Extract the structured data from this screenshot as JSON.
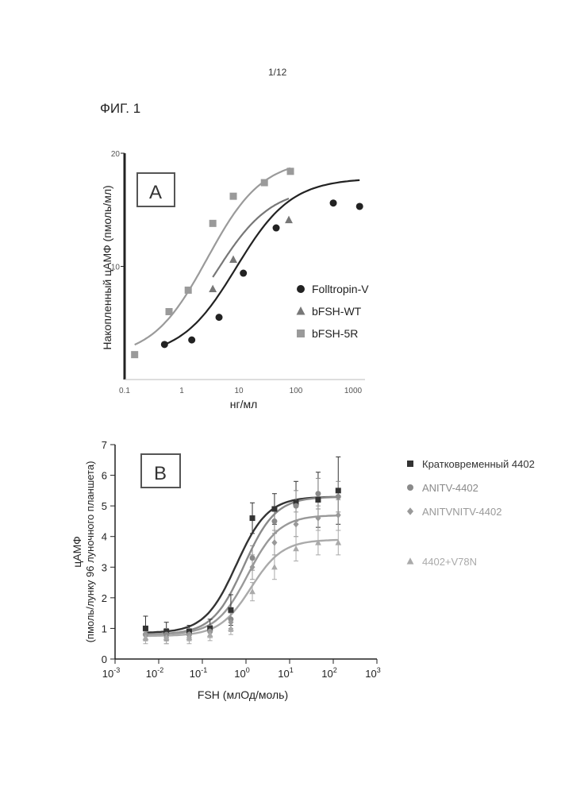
{
  "page": {
    "number": "1/12",
    "figure_label": "ФИГ. 1"
  },
  "colors": {
    "ink": "#222222",
    "gray_dark": "#444444",
    "gray_mid": "#777777",
    "gray_light": "#9a9a9a",
    "panel_border": "#555555"
  },
  "chart_data": [
    {
      "panel": "A",
      "type": "scatter",
      "xscale": "log",
      "xlabel": "нг/мл",
      "ylabel": "Накопленный цАМФ (пмоль/мл)",
      "xlim": [
        0.1,
        1000
      ],
      "ylim": [
        0,
        20
      ],
      "x_ticks": [
        "0.1",
        "1",
        "10",
        "100",
        "1000"
      ],
      "y_ticks": [
        "10",
        "20"
      ],
      "grid": false,
      "legend_position": "right",
      "series": [
        {
          "name": "Folltropin-V",
          "marker": "circle",
          "color": "#222222",
          "x": [
            0.5,
            1.5,
            4.5,
            12,
            45,
            450,
            1300
          ],
          "y": [
            3.1,
            3.5,
            5.5,
            9.4,
            13.4,
            15.6,
            15.3
          ],
          "fit": {
            "top": 17.8,
            "bottom": 2.0,
            "ec50": 9,
            "hill": 0.9
          }
        },
        {
          "name": "bFSH-WT",
          "marker": "triangle",
          "color": "#777777",
          "x": [
            3.5,
            8,
            75
          ],
          "y": [
            8.0,
            10.6,
            14.1
          ],
          "fit": {
            "top": 17.0,
            "bottom": 2.0,
            "ec50": 4,
            "hill": 0.9
          }
        },
        {
          "name": "bFSH-5R",
          "marker": "square",
          "color": "#9a9a9a",
          "x": [
            0.15,
            0.6,
            1.3,
            3.5,
            8,
            28,
            80
          ],
          "y": [
            2.2,
            6.0,
            7.9,
            13.8,
            16.2,
            17.4,
            18.4
          ],
          "fit": {
            "top": 19.5,
            "bottom": 1.9,
            "ec50": 2.8,
            "hill": 0.9
          }
        }
      ]
    },
    {
      "panel": "B",
      "type": "scatter",
      "xscale": "log",
      "xlabel": "FSH (млОд/моль)",
      "ylabel_line1": "цАМФ",
      "ylabel_line2": "(пмоль/лунку 96 луночного планшета)",
      "xlim": [
        0.001,
        1000
      ],
      "ylim": [
        0,
        7
      ],
      "x_ticks": [
        {
          "base": "10",
          "exp": "-3"
        },
        {
          "base": "10",
          "exp": "-2"
        },
        {
          "base": "10",
          "exp": "-1"
        },
        {
          "base": "10",
          "exp": "0"
        },
        {
          "base": "10",
          "exp": "1"
        },
        {
          "base": "10",
          "exp": "2"
        },
        {
          "base": "10",
          "exp": "3"
        }
      ],
      "y_ticks": [
        "0",
        "1",
        "2",
        "3",
        "4",
        "5",
        "6",
        "7"
      ],
      "grid": false,
      "legend_position": "right",
      "series": [
        {
          "name": "Кратковременный 4402",
          "marker": "square",
          "color": "#333333",
          "x": [
            0.005,
            0.015,
            0.05,
            0.15,
            0.45,
            1.4,
            4.5,
            14,
            45,
            130
          ],
          "y": [
            1.0,
            0.9,
            0.9,
            1.0,
            1.6,
            4.6,
            4.9,
            5.1,
            5.2,
            5.5
          ],
          "err": [
            0.4,
            0.3,
            0.2,
            0.3,
            0.5,
            0.5,
            0.5,
            0.7,
            0.9,
            1.1
          ],
          "fit": {
            "top": 5.3,
            "bottom": 0.85,
            "ec50": 0.6,
            "hill": 1.2
          }
        },
        {
          "name": "ANITV-4402",
          "marker": "circle",
          "color": "#8a8a8a",
          "x": [
            0.005,
            0.015,
            0.05,
            0.15,
            0.45,
            1.4,
            4.5,
            14,
            45,
            130
          ],
          "y": [
            0.8,
            0.8,
            0.8,
            0.9,
            1.3,
            3.3,
            4.5,
            5.0,
            5.4,
            5.3
          ],
          "err": [
            0.2,
            0.2,
            0.2,
            0.2,
            0.3,
            0.4,
            0.4,
            0.5,
            0.5,
            0.5
          ],
          "fit": {
            "top": 5.3,
            "bottom": 0.8,
            "ec50": 0.9,
            "hill": 1.2
          }
        },
        {
          "name": "ANITVNITV-4402",
          "marker": "diamond",
          "color": "#999999",
          "x": [
            0.005,
            0.015,
            0.05,
            0.15,
            0.45,
            1.4,
            4.5,
            14,
            45,
            130
          ],
          "y": [
            0.8,
            0.7,
            0.8,
            0.9,
            1.2,
            3.0,
            3.8,
            4.4,
            4.6,
            4.7
          ],
          "err": [
            0.2,
            0.2,
            0.2,
            0.2,
            0.3,
            0.4,
            0.4,
            0.4,
            0.4,
            0.5
          ],
          "fit": {
            "top": 4.7,
            "bottom": 0.8,
            "ec50": 1.1,
            "hill": 1.2
          }
        },
        {
          "name": "4402+V78N",
          "marker": "triangle",
          "color": "#aaaaaa",
          "x": [
            0.005,
            0.015,
            0.05,
            0.15,
            0.45,
            1.4,
            4.5,
            14,
            45,
            130
          ],
          "y": [
            0.7,
            0.7,
            0.7,
            0.8,
            1.0,
            2.2,
            3.0,
            3.6,
            3.8,
            3.8
          ],
          "err": [
            0.2,
            0.2,
            0.2,
            0.2,
            0.2,
            0.3,
            0.4,
            0.4,
            0.4,
            0.4
          ],
          "fit": {
            "top": 3.9,
            "bottom": 0.75,
            "ec50": 1.3,
            "hill": 1.2
          }
        }
      ]
    }
  ]
}
